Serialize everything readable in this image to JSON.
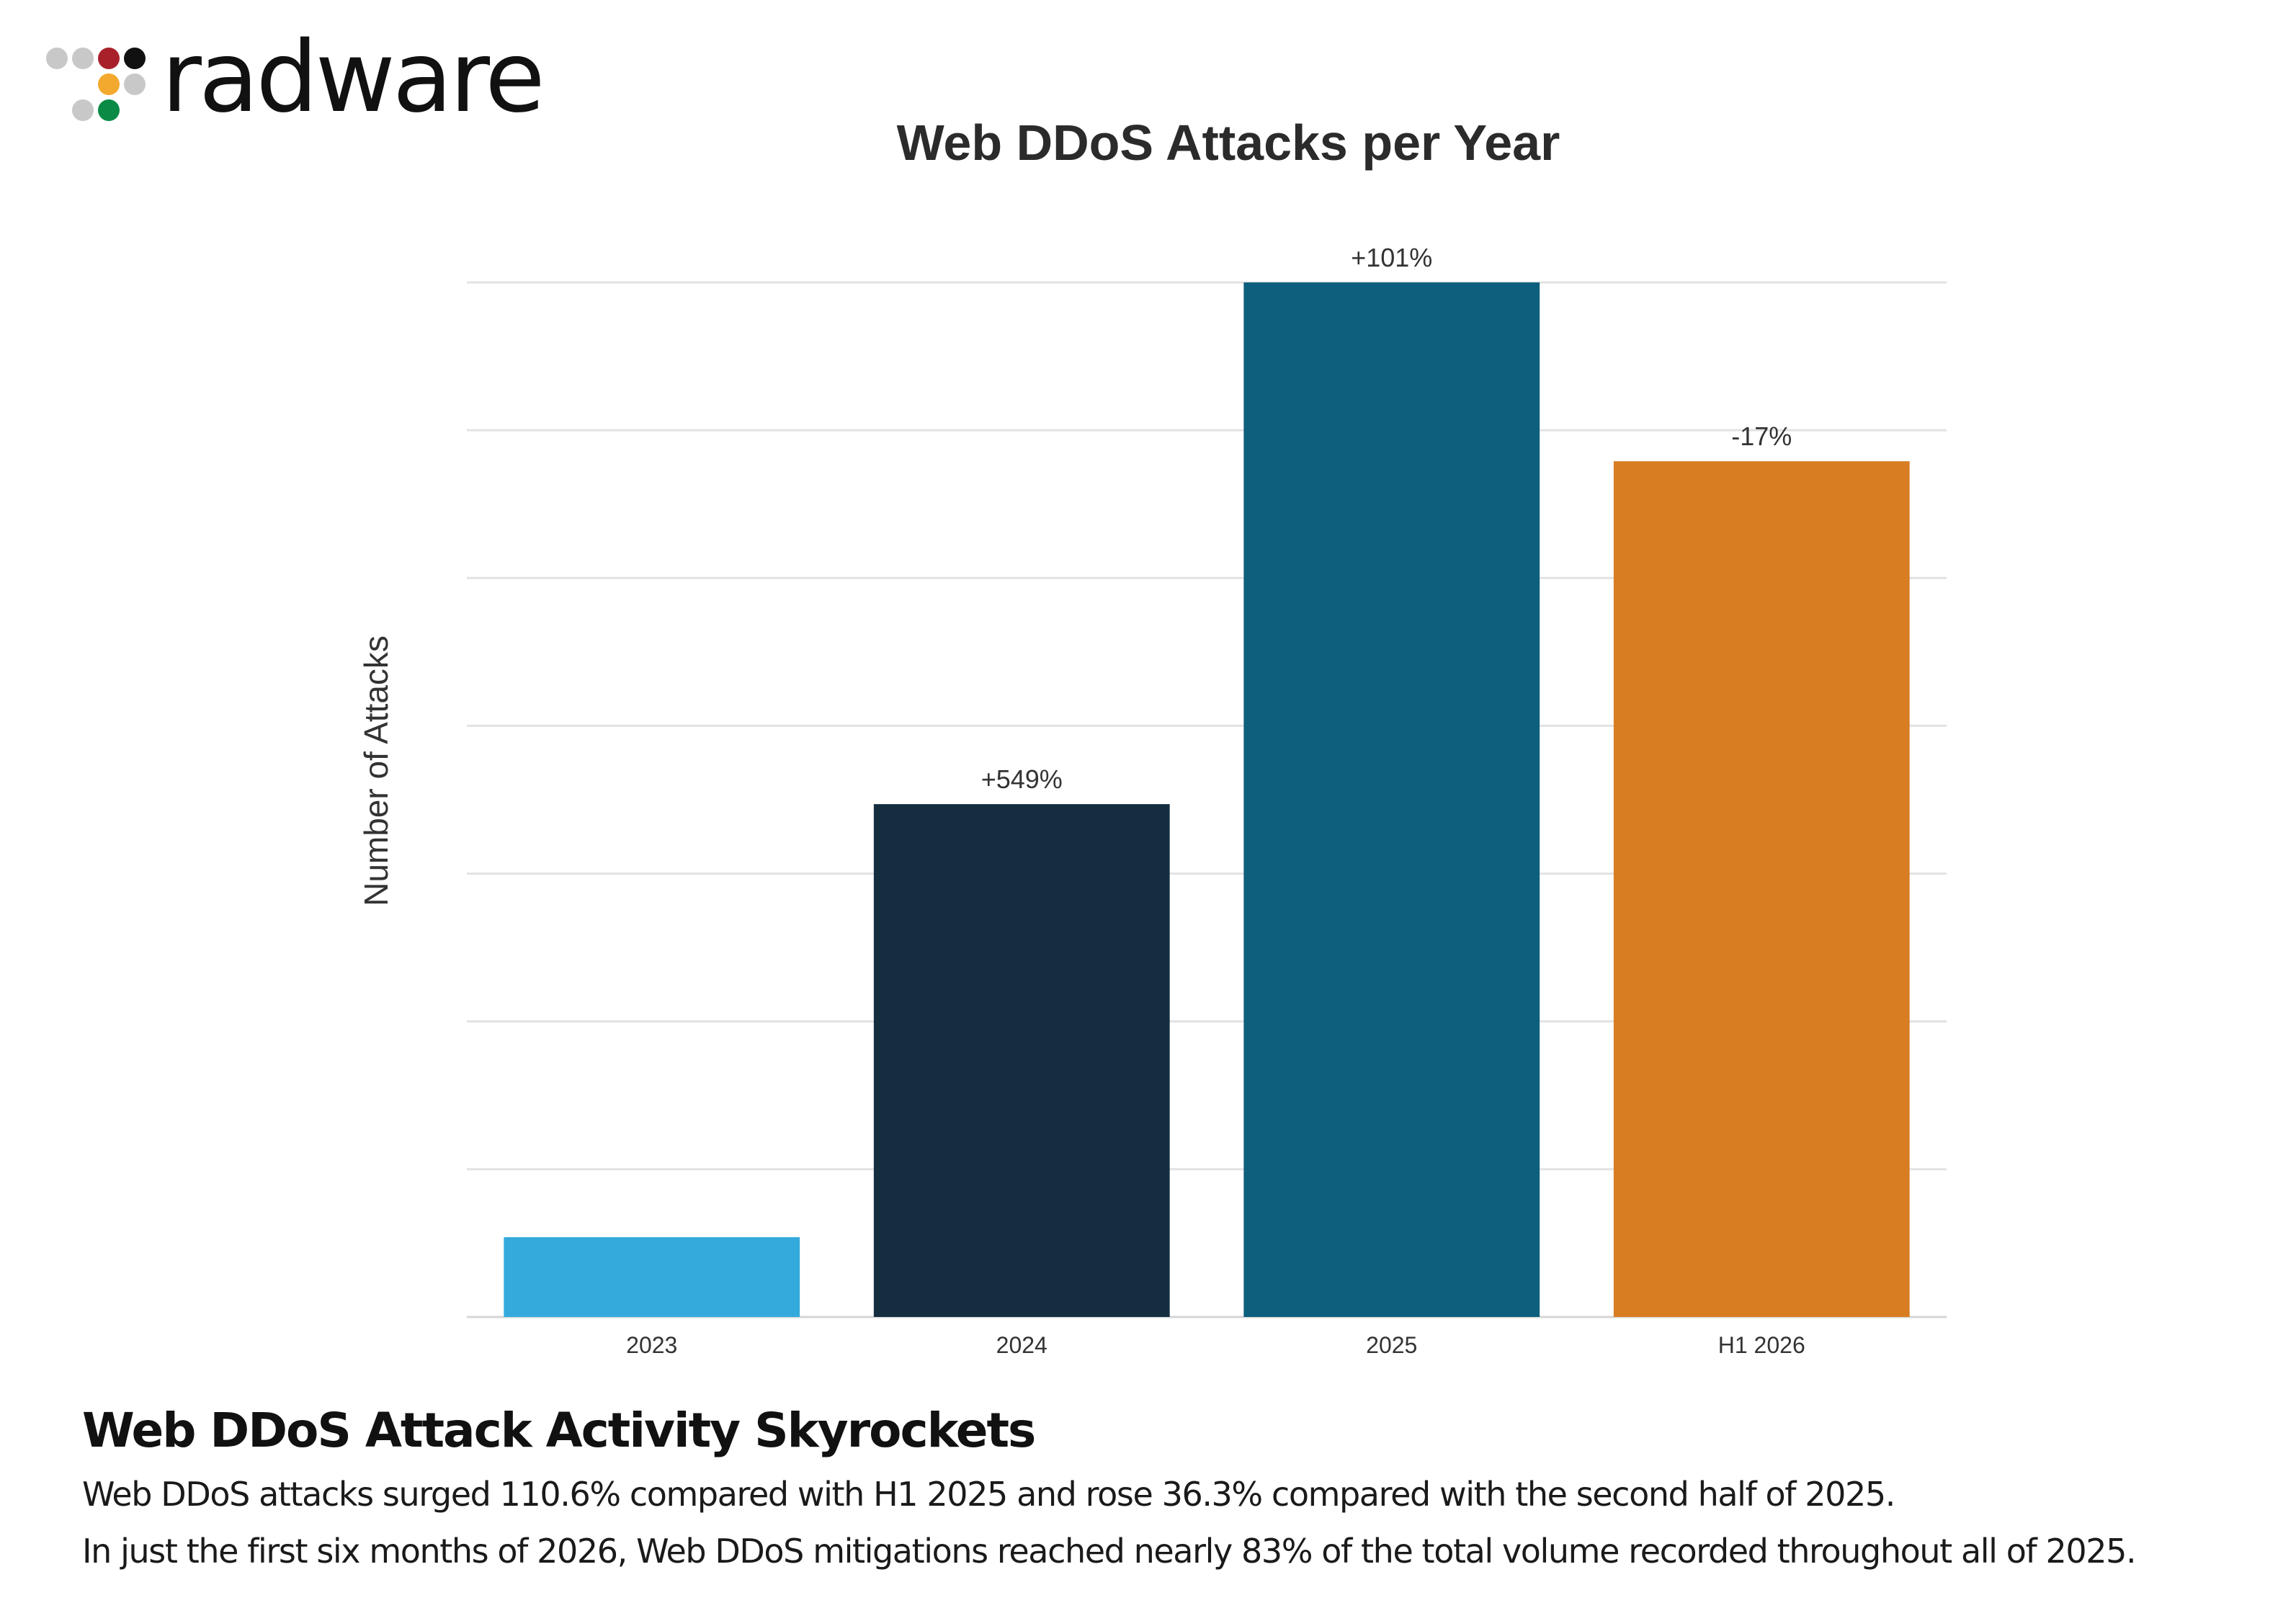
{
  "brand": {
    "name": "radware",
    "dot_colors": [
      "#c8c8c8",
      "#c8c8c8",
      "#a8202a",
      "#111111",
      "#f3a92d",
      "#c8c8c8",
      "#c8c8c8",
      "#0a8a45"
    ]
  },
  "chart_data": {
    "type": "bar",
    "title": "Web DDoS Attacks per Year",
    "ylabel": "Number of Attacks",
    "xlabel": "",
    "y_tick_labels_shown": false,
    "grid": true,
    "ylim": [
      0,
      7
    ],
    "categories": [
      "2023",
      "2024",
      "2025",
      "H1 2026"
    ],
    "values": [
      0.54,
      3.47,
      7.0,
      5.79
    ],
    "data_labels": [
      "",
      "+549%",
      "+101%",
      "-17%"
    ],
    "colors": [
      "#33aadb",
      "#142e40",
      "#0e5f7d",
      "#d87d22"
    ]
  },
  "footer": {
    "heading": "Web DDoS Attack Activity Skyrockets",
    "lines": [
      "Web DDoS attacks surged 110.6% compared with H1 2025 and rose 36.3% compared with the second half of 2025.",
      "In just the first six months of 2026, Web DDoS mitigations reached nearly 83% of the total volume recorded throughout all of 2025."
    ]
  }
}
